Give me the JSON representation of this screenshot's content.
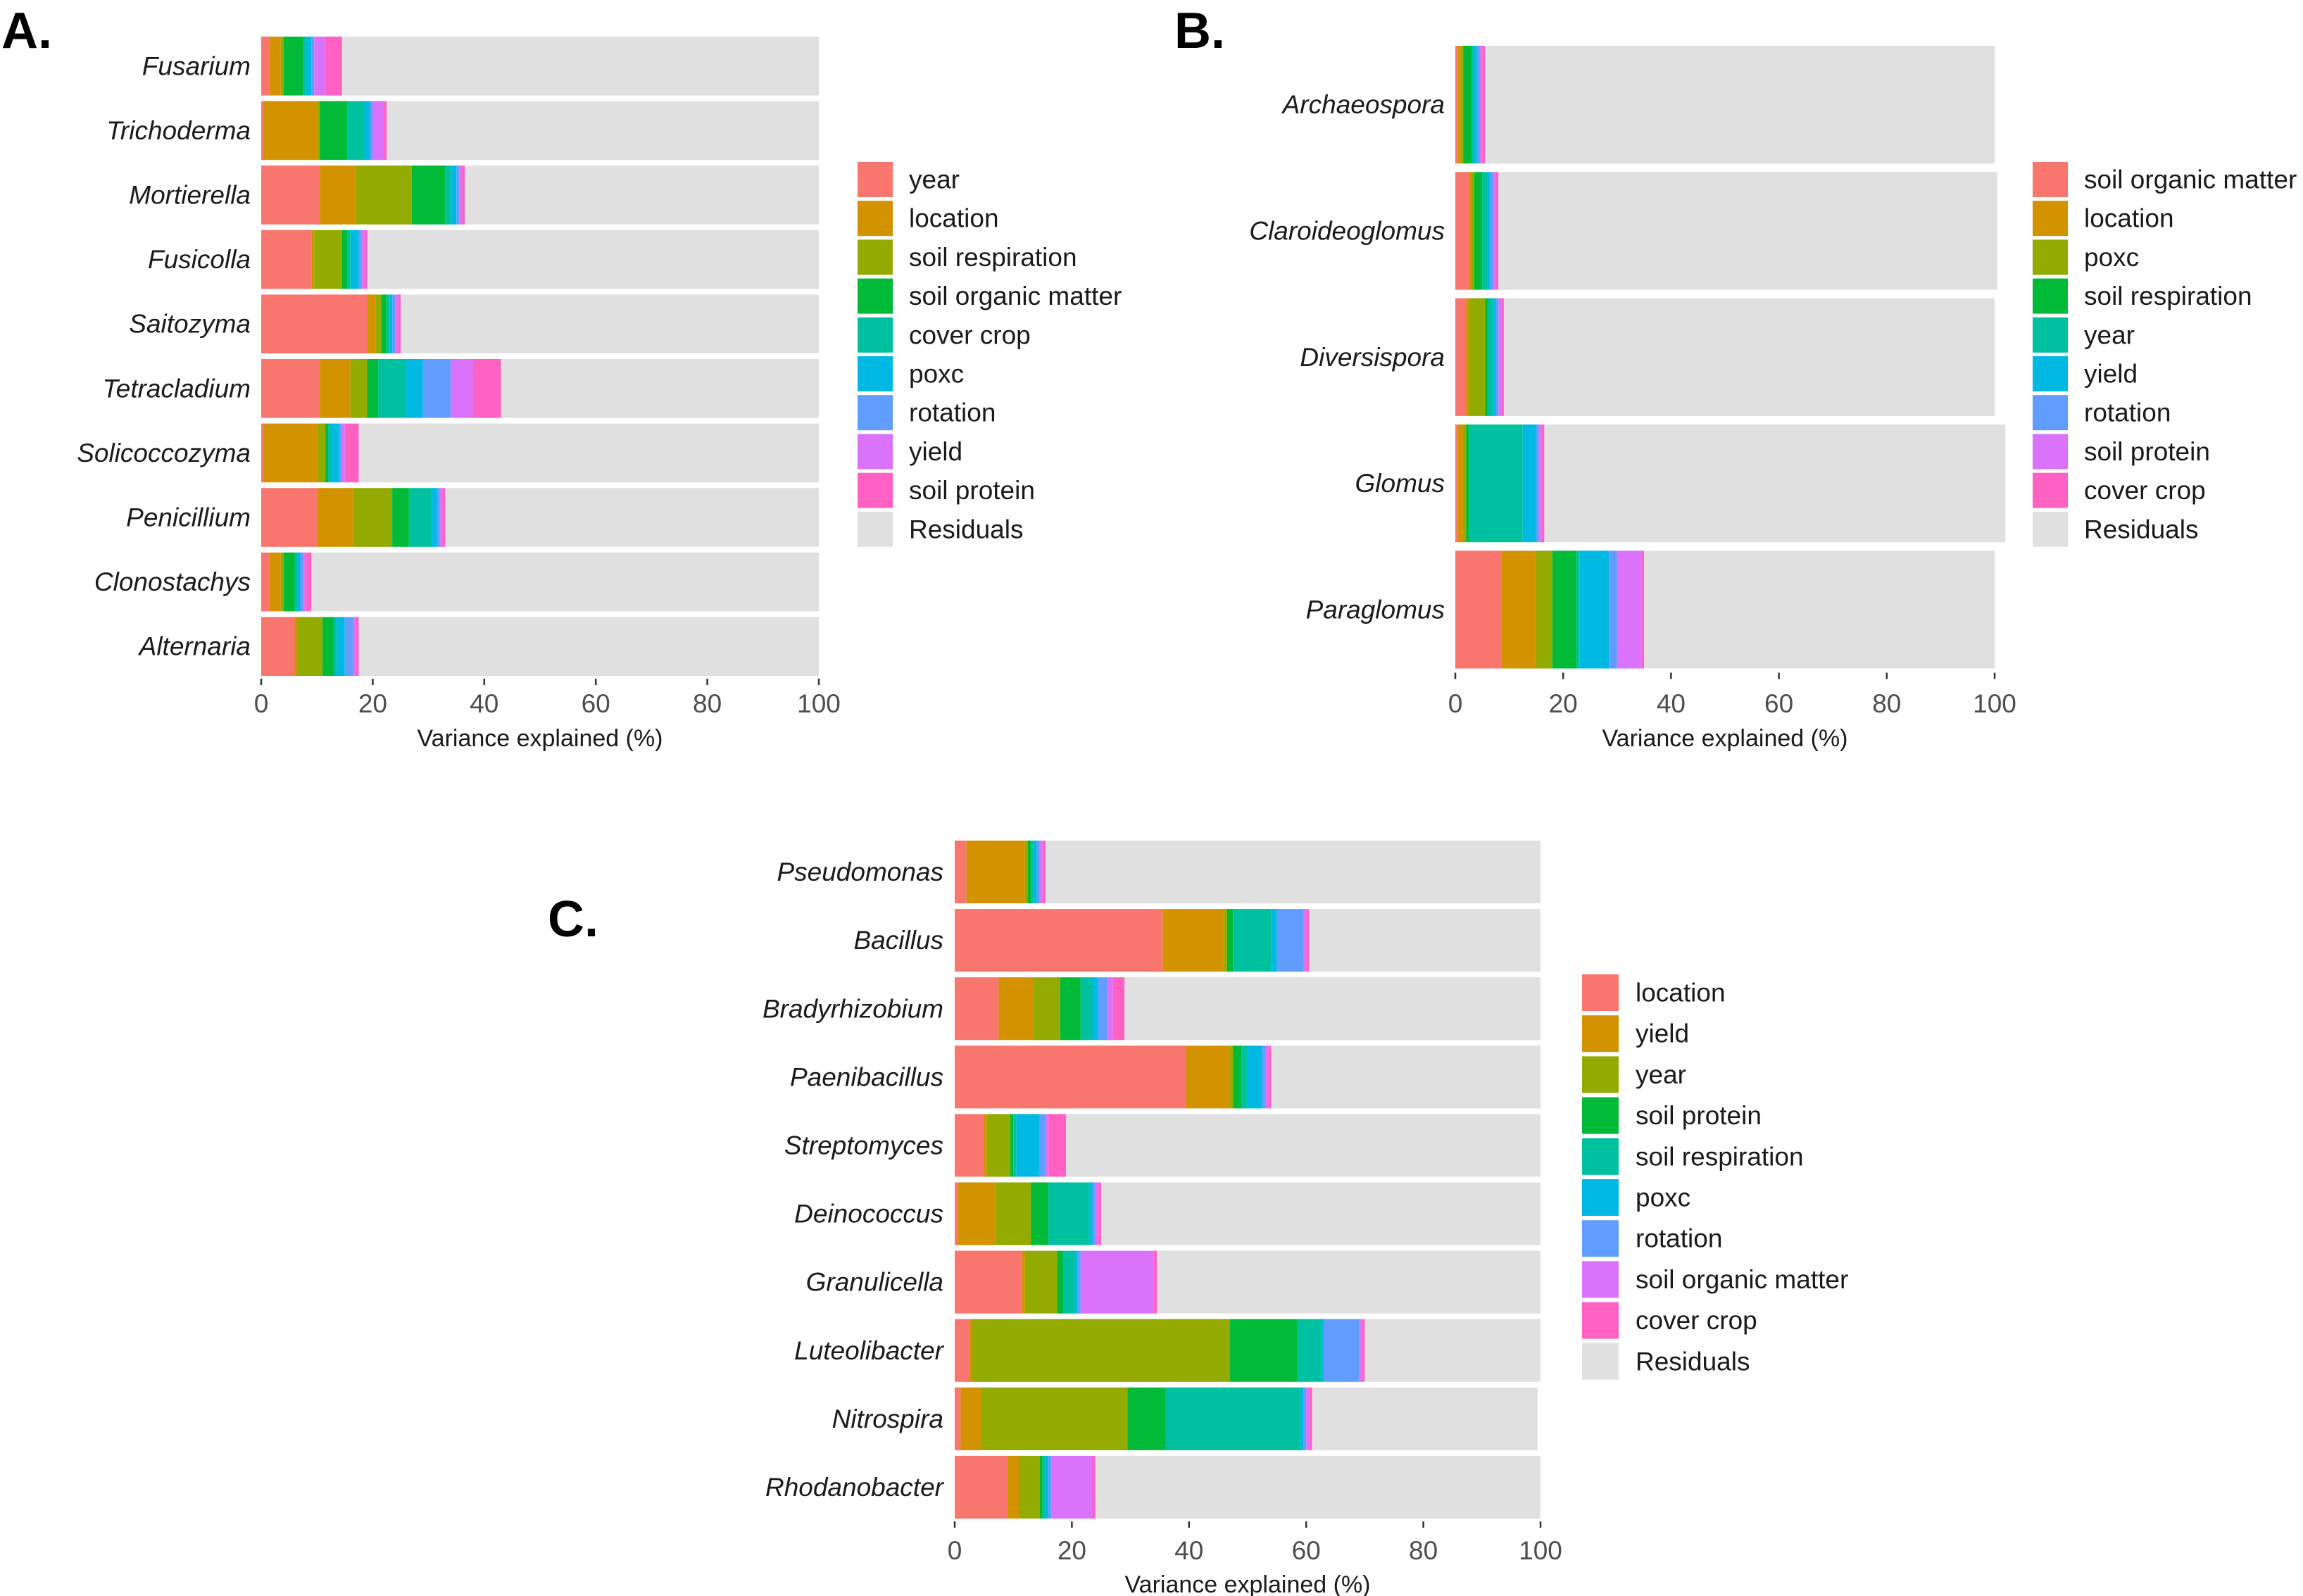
{
  "chart_data": [
    {
      "panel": "A.",
      "type": "bar",
      "orientation": "horizontal",
      "stacked": true,
      "xlabel": "Variance explained (%)",
      "xlim": [
        0,
        100
      ],
      "xticks": [
        "0",
        "20",
        "40",
        "60",
        "80",
        "100"
      ],
      "categories": [
        "Fusarium",
        "Trichoderma",
        "Mortierella",
        "Fusicolla",
        "Saitozyma",
        "Tetracladium",
        "Solicoccozyma",
        "Penicillium",
        "Clonostachys",
        "Alternaria"
      ],
      "series": [
        {
          "name": "year",
          "color": "#F8766D",
          "values": [
            1.5,
            0.5,
            10.5,
            9,
            19,
            10.5,
            0.5,
            10,
            1.5,
            6
          ]
        },
        {
          "name": "location",
          "color": "#D39200",
          "values": [
            2,
            9.5,
            6.5,
            0.5,
            1.5,
            5.5,
            9.5,
            6.5,
            2,
            0.5
          ]
        },
        {
          "name": "soil respiration",
          "color": "#93AA00",
          "values": [
            0.5,
            0.5,
            10,
            5,
            1,
            3,
            1.5,
            7,
            0.5,
            4.5
          ]
        },
        {
          "name": "soil organic matter",
          "color": "#00BA38",
          "values": [
            3.5,
            5,
            6,
            1,
            1,
            2,
            0.5,
            3,
            2,
            2
          ]
        },
        {
          "name": "cover crop",
          "color": "#00C19F",
          "values": [
            0.5,
            3,
            1,
            0.5,
            0.5,
            5,
            0.5,
            4,
            0.5,
            0.5
          ]
        },
        {
          "name": "poxc",
          "color": "#00B9E3",
          "values": [
            1,
            1,
            1,
            1.5,
            0.5,
            3,
            1.5,
            1,
            0.5,
            1.5
          ]
        },
        {
          "name": "rotation",
          "color": "#619CFF",
          "values": [
            0.5,
            0.5,
            0.5,
            0.5,
            0.5,
            5,
            0.5,
            0.5,
            0.5,
            1.5
          ]
        },
        {
          "name": "yield",
          "color": "#DB72FB",
          "values": [
            2,
            2,
            0.5,
            0.5,
            0.5,
            4,
            0.5,
            0.5,
            0.5,
            0.5
          ]
        },
        {
          "name": "soil protein",
          "color": "#FF61C3",
          "values": [
            3,
            0.5,
            0.5,
            0.5,
            0.5,
            5,
            2.5,
            0.5,
            1,
            0.5
          ]
        },
        {
          "name": "Residuals",
          "color": "#E0E0E0",
          "values": [
            85.5,
            77.5,
            63.5,
            81,
            75,
            57,
            82.5,
            67,
            91,
            82.5
          ]
        }
      ]
    },
    {
      "panel": "B.",
      "type": "bar",
      "orientation": "horizontal",
      "stacked": true,
      "xlabel": "Variance explained (%)",
      "xlim": [
        0,
        100
      ],
      "xticks": [
        "0",
        "20",
        "40",
        "60",
        "80",
        "100"
      ],
      "categories": [
        "Archaeospora",
        "Claroideoglomus",
        "Diversispora",
        "Glomus",
        "Paraglomus"
      ],
      "series": [
        {
          "name": "soil organic matter",
          "color": "#F8766D",
          "values": [
            0.5,
            2.5,
            2,
            0.5,
            8.5
          ]
        },
        {
          "name": "location",
          "color": "#D39200",
          "values": [
            0.5,
            0.5,
            0.5,
            1,
            6.5
          ]
        },
        {
          "name": "poxc",
          "color": "#93AA00",
          "values": [
            0.5,
            0.5,
            3,
            0.5,
            3
          ]
        },
        {
          "name": "soil respiration",
          "color": "#00BA38",
          "values": [
            1.5,
            1.5,
            0.5,
            0.5,
            4.5
          ]
        },
        {
          "name": "year",
          "color": "#00C19F",
          "values": [
            0.5,
            1,
            1,
            10,
            0.5
          ]
        },
        {
          "name": "yield",
          "color": "#00B9E3",
          "values": [
            0.5,
            0.5,
            0.5,
            2.5,
            5.5
          ]
        },
        {
          "name": "rotation",
          "color": "#619CFF",
          "values": [
            0.5,
            0.5,
            0.5,
            0.5,
            1.5
          ]
        },
        {
          "name": "soil protein",
          "color": "#DB72FB",
          "values": [
            0.5,
            0.5,
            0.5,
            0.5,
            4.5
          ]
        },
        {
          "name": "cover crop",
          "color": "#FF61C3",
          "values": [
            0.5,
            0.5,
            0.5,
            0.5,
            0.5
          ]
        },
        {
          "name": "Residuals",
          "color": "#E0E0E0",
          "values": [
            94.5,
            92.5,
            91,
            85.5,
            65
          ]
        }
      ]
    },
    {
      "panel": "C.",
      "type": "bar",
      "orientation": "horizontal",
      "stacked": true,
      "xlabel": "Variance explained (%)",
      "xlim": [
        0,
        100
      ],
      "xticks": [
        "0",
        "20",
        "40",
        "60",
        "80",
        "100"
      ],
      "categories": [
        "Pseudomonas",
        "Bacillus",
        "Bradyrhizobium",
        "Paenibacillus",
        "Streptomyces",
        "Deinococcus",
        "Granulicella",
        "Luteolibacter",
        "Nitrospira",
        "Rhodanobacter"
      ],
      "series": [
        {
          "name": "location",
          "color": "#F8766D",
          "values": [
            2,
            35.5,
            7.5,
            39.5,
            5,
            0.5,
            11.5,
            2.5,
            1,
            9
          ]
        },
        {
          "name": "yield",
          "color": "#D39200",
          "values": [
            10,
            10.5,
            6,
            7.5,
            0.5,
            6.5,
            0.5,
            0.5,
            3.5,
            2
          ]
        },
        {
          "name": "year",
          "color": "#93AA00",
          "values": [
            0.5,
            0.5,
            4.5,
            0.5,
            4,
            6,
            5.5,
            44,
            25,
            3.5
          ]
        },
        {
          "name": "soil protein",
          "color": "#00BA38",
          "values": [
            0.5,
            1,
            3.5,
            1.5,
            0.5,
            3,
            1,
            11.5,
            6.5,
            0.5
          ]
        },
        {
          "name": "soil respiration",
          "color": "#00C19F",
          "values": [
            0.5,
            6.5,
            2,
            1,
            0.5,
            7,
            2,
            4,
            23,
            0.5
          ]
        },
        {
          "name": "poxc",
          "color": "#00B9E3",
          "values": [
            0.5,
            1,
            1,
            2.5,
            4,
            0.5,
            0.5,
            0.5,
            0.5,
            0.5
          ]
        },
        {
          "name": "rotation",
          "color": "#619CFF",
          "values": [
            0.5,
            4.5,
            1.5,
            0.5,
            1,
            0.5,
            0.5,
            6,
            0.5,
            0.5
          ]
        },
        {
          "name": "soil organic matter",
          "color": "#DB72FB",
          "values": [
            0.5,
            0.5,
            1,
            0.5,
            0.5,
            0.5,
            12.5,
            0.5,
            0.5,
            7
          ]
        },
        {
          "name": "cover crop",
          "color": "#FF61C3",
          "values": [
            0.5,
            0.5,
            2,
            0.5,
            3,
            0.5,
            0.5,
            0.5,
            0.5,
            0.5
          ]
        },
        {
          "name": "Residuals",
          "color": "#E0E0E0",
          "values": [
            84.5,
            39.5,
            71,
            46,
            81,
            75,
            65.5,
            30,
            38.5,
            76
          ]
        }
      ]
    }
  ]
}
